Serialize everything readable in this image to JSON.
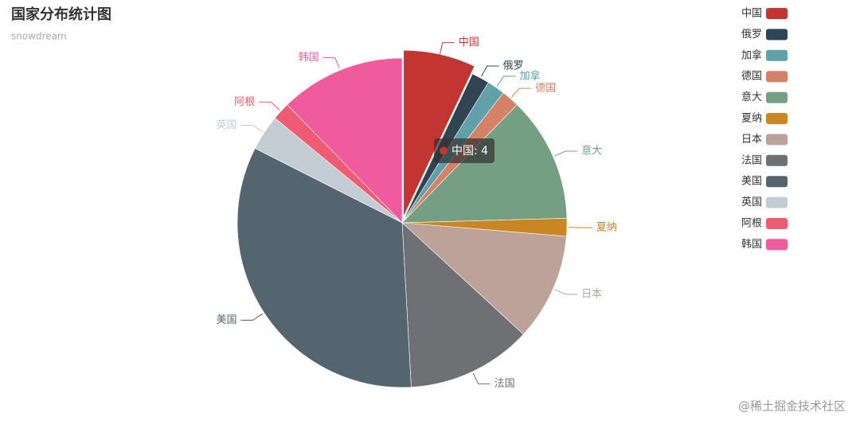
{
  "chart_data": {
    "type": "pie",
    "title": "国家分布统计图",
    "subtitle": "snowdream",
    "categories": [
      "中国",
      "俄罗",
      "加拿",
      "德国",
      "意大",
      "夏纳",
      "日本",
      "法国",
      "美国",
      "英国",
      "阿根",
      "韩国"
    ],
    "values": [
      4,
      1,
      1,
      1,
      7,
      1,
      6,
      7,
      19,
      2,
      1,
      7
    ],
    "colors": [
      "#c23531",
      "#2f4554",
      "#61a0a8",
      "#d48265",
      "#749f83",
      "#ca8622",
      "#bda29a",
      "#6e7074",
      "#546570",
      "#c4ccd3",
      "#f05b72",
      "#ef5b9c"
    ],
    "legend": "top-right",
    "tooltip": {
      "index": 0
    },
    "watermark": "@稀土掘金技术社区"
  }
}
